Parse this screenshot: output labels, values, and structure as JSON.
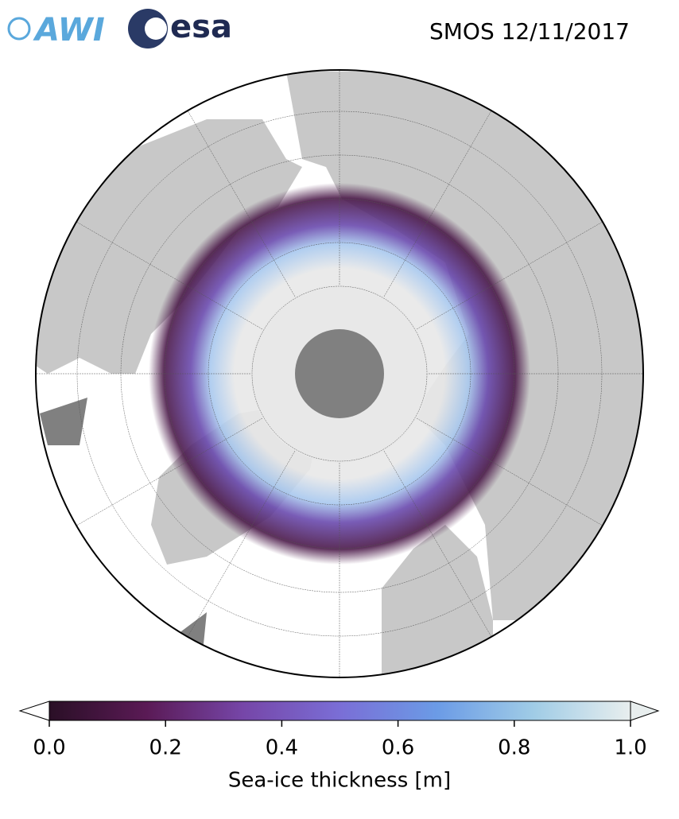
{
  "header": {
    "logos": [
      "AWI",
      "esa"
    ],
    "title": "SMOS 12/11/2017"
  },
  "colorbar": {
    "label": "Sea-ice thickness [m]",
    "lim": [
      0,
      1
    ],
    "ticks": [
      {
        "value": 0,
        "label": "0.0"
      },
      {
        "value": 0.2,
        "label": "0.2"
      },
      {
        "value": 0.4,
        "label": "0.4"
      },
      {
        "value": 0.6,
        "label": "0.6"
      },
      {
        "value": 0.8,
        "label": "0.8"
      },
      {
        "value": 1,
        "label": "1.0"
      }
    ],
    "colors": [
      "#2a0f26",
      "#5a1a55",
      "#7646a8",
      "#7a6ed6",
      "#6b9be6",
      "#a0cce6",
      "#e8eeee"
    ]
  }
}
